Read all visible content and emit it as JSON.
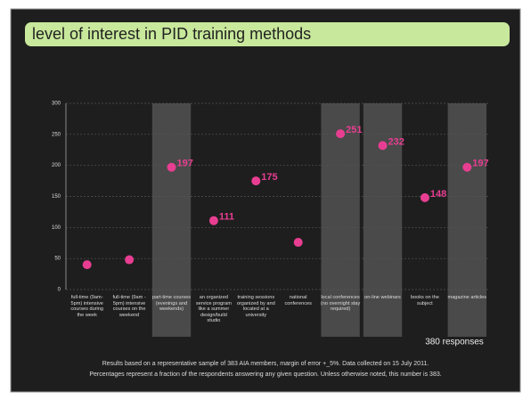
{
  "chart_data": {
    "type": "dot",
    "title": "level of interest in PID training methods",
    "categories": [
      "full-time (9am- 5pm) intensive courses during the week",
      "full-time (9am - 5pm) intensive courses on the weekend",
      "part-time courses (evenings and weekends)",
      "an organized service program like a summer design/build studio",
      "training sessions organized by and located at a university",
      "national conferences",
      "local conferences (no overnight stay required)",
      "on-line webinars",
      "books on the subject",
      "magazine articles"
    ],
    "values": [
      40,
      48,
      197,
      111,
      175,
      76,
      251,
      232,
      148,
      197
    ],
    "value_labels": [
      null,
      null,
      "197",
      "111",
      "175",
      null,
      "251",
      "232",
      "148",
      "197"
    ],
    "highlighted": [
      2,
      6,
      7,
      9
    ],
    "color": "#e83e92",
    "ylim": [
      0,
      300
    ],
    "yticks": [
      0,
      50,
      100,
      150,
      200,
      250,
      300
    ],
    "grid": true,
    "annotation": "380 responses",
    "footnotes": [
      "Results based on a representative sample of 383 AIA members, margin of error +_5%. Data collected on 15 July 2011.",
      "Percentages represent a fraction of the respondents answering any given question. Unless otherwise noted, this number is 383."
    ]
  }
}
